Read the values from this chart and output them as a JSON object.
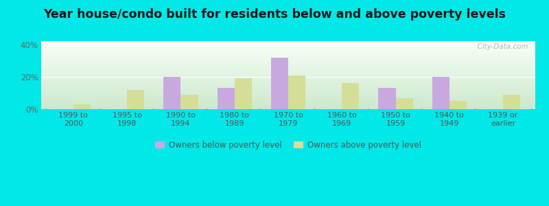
{
  "categories": [
    "1999 to\n2000",
    "1995 to\n1998",
    "1990 to\n1994",
    "1980 to\n1989",
    "1970 to\n1979",
    "1960 to\n1969",
    "1950 to\n1959",
    "1940 to\n1949",
    "1939 or\nearlier"
  ],
  "below_poverty": [
    0,
    0,
    20,
    13,
    32,
    0,
    13,
    20,
    0
  ],
  "above_poverty": [
    3,
    12,
    9,
    19,
    21,
    16,
    7,
    5,
    9
  ],
  "below_color": "#c9a8e0",
  "above_color": "#d4de96",
  "title": "Year house/condo built for residents below and above poverty levels",
  "title_fontsize": 12.5,
  "ylabel_ticks": [
    "0%",
    "20%",
    "40%"
  ],
  "yticks": [
    0,
    20,
    40
  ],
  "ylim": [
    0,
    42
  ],
  "background_outer": "#00e8e8",
  "background_inner_topleft": "#f0faf0",
  "background_inner_topright": "#ffffff",
  "background_inner_bottom": "#c8e8c8",
  "bar_width": 0.32,
  "legend_below_label": "Owners below poverty level",
  "legend_above_label": "Owners above poverty level",
  "watermark": "  City-Data.com"
}
